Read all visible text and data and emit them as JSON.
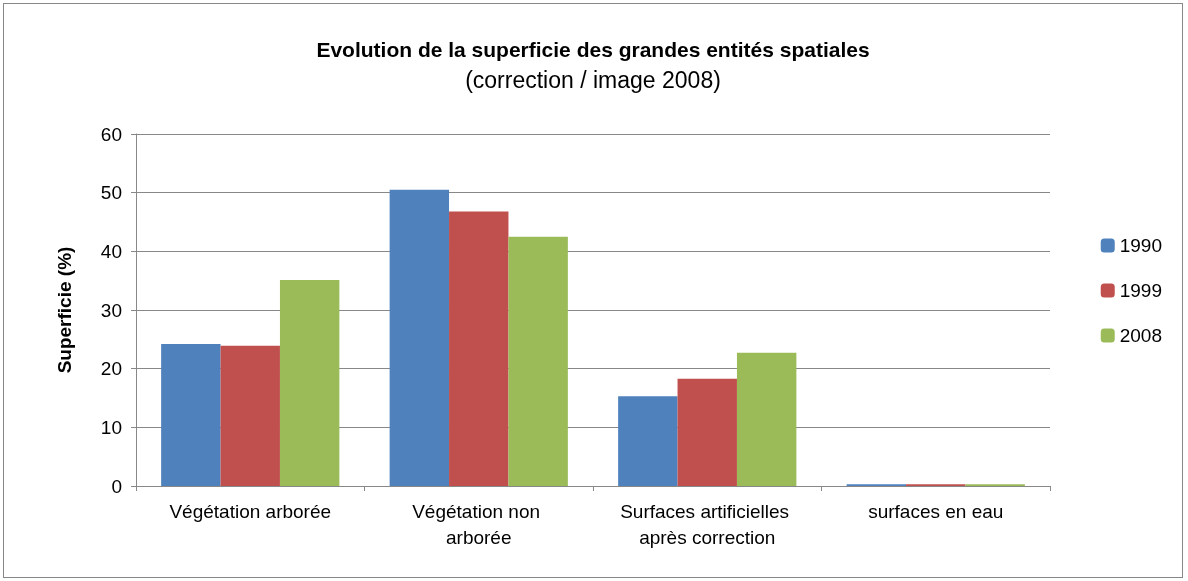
{
  "chart_data": {
    "type": "bar",
    "title": "Evolution de la superficie des grandes entités spatiales",
    "subtitle": "(correction / image 2008)",
    "ylabel": "Superficie (%)",
    "categories": [
      "Végétation arborée",
      "Végétation non arborée",
      "Surfaces artificielles après correction",
      "surfaces en eau"
    ],
    "series": [
      {
        "name": "1990",
        "color": "#4f81bd",
        "values": [
          24.2,
          50.5,
          15.3,
          0.3
        ]
      },
      {
        "name": "1999",
        "color": "#c0504d",
        "values": [
          23.9,
          46.8,
          18.3,
          0.3
        ]
      },
      {
        "name": "2008",
        "color": "#9bbb59",
        "values": [
          35.1,
          42.5,
          22.7,
          0.3
        ]
      }
    ],
    "ylim": [
      0,
      60
    ],
    "yticks": [
      0,
      10,
      20,
      30,
      40,
      50,
      60
    ],
    "grid": "y",
    "legend": "right"
  }
}
